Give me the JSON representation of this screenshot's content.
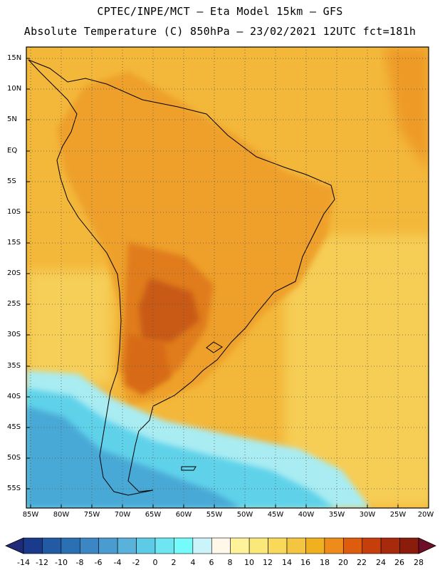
{
  "header": {
    "line1": "CPTEC/INPE/MCT –  Eta Model 15km – GFS",
    "line2": "Absolute Temperature (C) 850hPa – 23/02/2021 12UTC fct=181h"
  },
  "axes": {
    "lat_labels": [
      "15N",
      "10N",
      "5N",
      "EQ",
      "5S",
      "10S",
      "15S",
      "20S",
      "25S",
      "30S",
      "35S",
      "40S",
      "45S",
      "50S",
      "55S"
    ],
    "lon_labels": [
      "85W",
      "80W",
      "75W",
      "70W",
      "65W",
      "60W",
      "55W",
      "50W",
      "45W",
      "40W",
      "35W",
      "30W",
      "25W",
      "20W"
    ]
  },
  "colorbar": {
    "ticks": [
      "-14",
      "-12",
      "-10",
      "-8",
      "-6",
      "-4",
      "-2",
      "0",
      "2",
      "4",
      "6",
      "8",
      "10",
      "12",
      "14",
      "16",
      "18",
      "20",
      "22",
      "24",
      "26",
      "28"
    ],
    "colors": [
      "#1a3a8c",
      "#235aa4",
      "#2c70b4",
      "#3c86c4",
      "#4a9bd0",
      "#58b2da",
      "#5dcbe6",
      "#6ee6f2",
      "#74fbfa",
      "#cbf4fa",
      "#fff8e8",
      "#fef39a",
      "#fbe87a",
      "#f8d95a",
      "#f4c541",
      "#f0b020",
      "#ed8c1a",
      "#de5c0e",
      "#c63e0c",
      "#a82a0c",
      "#8a1c0c"
    ],
    "left_arrow_color": "#1f2a78",
    "right_arrow_color": "#6e0e28"
  },
  "map": {
    "ocean_background": "#f3b73a",
    "land_base": "#ee9c2a"
  }
}
